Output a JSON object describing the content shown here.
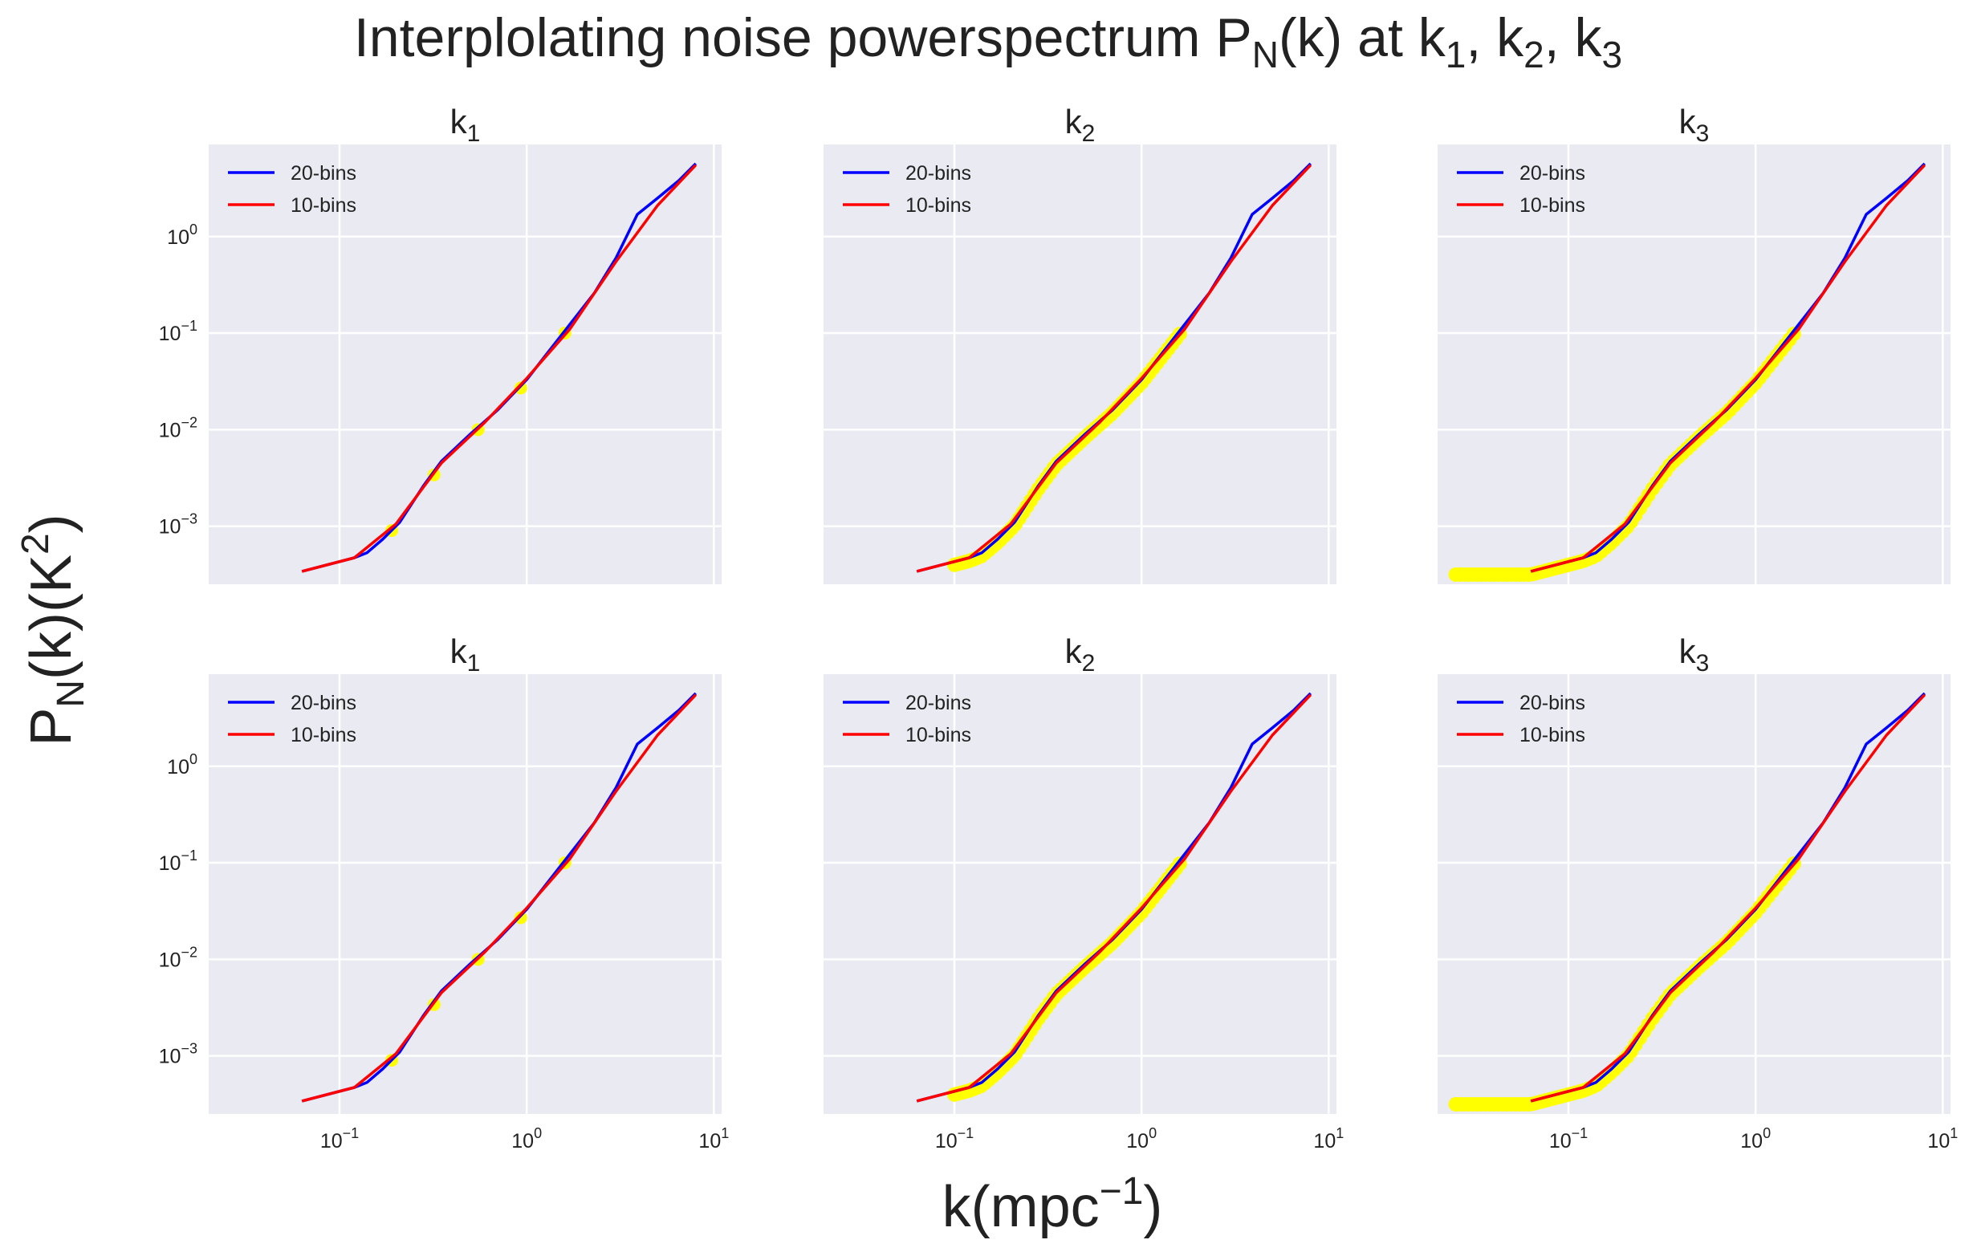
{
  "title": {
    "main": "Interplolating noise powerspectrum P",
    "sub": "N",
    "tail": "(k) at k",
    "k1sub": "1",
    "sep1": ", k",
    "k2sub": "2",
    "sep2": ", k",
    "k3sub": "3"
  },
  "xlabel": {
    "pre": "k(mpc",
    "sup": "−1",
    "post": ")"
  },
  "ylabel": {
    "p": "P",
    "sub": "N",
    "mid": "(k)(K",
    "sup": "2",
    "post": ")"
  },
  "colors": {
    "bg": "#eaeaf2",
    "grid": "#ffffff",
    "blue": "#0000ff",
    "red": "#ff0000",
    "yellow": "#ffff00"
  },
  "legend": [
    "20-bins",
    "10-bins"
  ],
  "xticks": [
    {
      "base": "10",
      "exp": "−1",
      "v": 0.1
    },
    {
      "base": "10",
      "exp": "0",
      "v": 1
    },
    {
      "base": "10",
      "exp": "1",
      "v": 10
    }
  ],
  "yticks": [
    {
      "base": "10",
      "exp": "0",
      "v": 1
    },
    {
      "base": "10",
      "exp": "−1",
      "v": 0.1
    },
    {
      "base": "10",
      "exp": "−2",
      "v": 0.01
    },
    {
      "base": "10",
      "exp": "−3",
      "v": 0.001
    }
  ],
  "chart_data": [
    {
      "type": "line",
      "title": "k",
      "title_sub": "1",
      "xscale": "log",
      "yscale": "log",
      "xlim": [
        0.02,
        11
      ],
      "ylim": [
        0.00025,
        9
      ],
      "series": [
        {
          "name": "20-bins",
          "color": "#0000ff",
          "x": [
            0.063,
            0.12,
            0.14,
            0.17,
            0.21,
            0.28,
            0.35,
            0.5,
            0.7,
            1.0,
            1.5,
            2.3,
            3.0,
            3.9,
            5.0,
            6.5,
            8.0
          ],
          "y": [
            0.00034,
            0.00047,
            0.00053,
            0.00073,
            0.0011,
            0.0026,
            0.0047,
            0.009,
            0.016,
            0.033,
            0.09,
            0.26,
            0.6,
            1.7,
            2.5,
            3.8,
            5.7
          ]
        },
        {
          "name": "10-bins",
          "color": "#ff0000",
          "x": [
            0.063,
            0.12,
            0.2,
            0.35,
            0.6,
            1.0,
            1.7,
            3.0,
            5.0,
            8.0
          ],
          "y": [
            0.00034,
            0.00047,
            0.00105,
            0.0045,
            0.012,
            0.034,
            0.11,
            0.55,
            2.1,
            5.5
          ]
        }
      ],
      "markers": {
        "color": "#ffff00",
        "x": [
          0.19,
          0.32,
          0.55,
          0.93,
          1.6
        ],
        "y": [
          0.0009,
          0.0034,
          0.01,
          0.027,
          0.1
        ]
      }
    },
    {
      "type": "line",
      "title": "k",
      "title_sub": "2",
      "xscale": "log",
      "yscale": "log",
      "xlim": [
        0.02,
        11
      ],
      "ylim": [
        0.00025,
        9
      ],
      "series": [
        {
          "name": "20-bins",
          "color": "#0000ff",
          "x": [
            0.063,
            0.12,
            0.14,
            0.17,
            0.21,
            0.28,
            0.35,
            0.5,
            0.7,
            1.0,
            1.5,
            2.3,
            3.0,
            3.9,
            5.0,
            6.5,
            8.0
          ],
          "y": [
            0.00034,
            0.00047,
            0.00053,
            0.00073,
            0.0011,
            0.0026,
            0.0047,
            0.009,
            0.016,
            0.033,
            0.09,
            0.26,
            0.6,
            1.7,
            2.5,
            3.8,
            5.7
          ]
        },
        {
          "name": "10-bins",
          "color": "#ff0000",
          "x": [
            0.063,
            0.12,
            0.2,
            0.35,
            0.6,
            1.0,
            1.7,
            3.0,
            5.0,
            8.0
          ],
          "y": [
            0.00034,
            0.00047,
            0.00105,
            0.0045,
            0.012,
            0.034,
            0.11,
            0.55,
            2.1,
            5.5
          ]
        }
      ],
      "markers": {
        "color": "#ffff00",
        "x_range": [
          0.1,
          1.6
        ],
        "count": 60
      }
    },
    {
      "type": "line",
      "title": "k",
      "title_sub": "3",
      "xscale": "log",
      "yscale": "log",
      "xlim": [
        0.02,
        11
      ],
      "ylim": [
        0.00025,
        9
      ],
      "series": [
        {
          "name": "20-bins",
          "color": "#0000ff",
          "x": [
            0.063,
            0.12,
            0.14,
            0.17,
            0.21,
            0.28,
            0.35,
            0.5,
            0.7,
            1.0,
            1.5,
            2.3,
            3.0,
            3.9,
            5.0,
            6.5,
            8.0
          ],
          "y": [
            0.00034,
            0.00047,
            0.00053,
            0.00073,
            0.0011,
            0.0026,
            0.0047,
            0.009,
            0.016,
            0.033,
            0.09,
            0.26,
            0.6,
            1.7,
            2.5,
            3.8,
            5.7
          ]
        },
        {
          "name": "10-bins",
          "color": "#ff0000",
          "x": [
            0.063,
            0.12,
            0.2,
            0.35,
            0.6,
            1.0,
            1.7,
            3.0,
            5.0,
            8.0
          ],
          "y": [
            0.00034,
            0.00047,
            0.00105,
            0.0045,
            0.012,
            0.034,
            0.11,
            0.55,
            2.1,
            5.5
          ]
        }
      ],
      "markers": {
        "color": "#ffff00",
        "x_range": [
          0.025,
          1.6
        ],
        "count": 80
      }
    },
    {
      "type": "line",
      "title": "k",
      "title_sub": "1",
      "xscale": "log",
      "yscale": "log",
      "xlim": [
        0.02,
        11
      ],
      "ylim": [
        0.00025,
        9
      ],
      "series": [
        {
          "name": "20-bins",
          "color": "#0000ff",
          "x": [
            0.063,
            0.12,
            0.14,
            0.17,
            0.21,
            0.28,
            0.35,
            0.5,
            0.7,
            1.0,
            1.5,
            2.3,
            3.0,
            3.9,
            5.0,
            6.5,
            8.0
          ],
          "y": [
            0.00034,
            0.00047,
            0.00053,
            0.00073,
            0.0011,
            0.0026,
            0.0047,
            0.009,
            0.016,
            0.033,
            0.09,
            0.26,
            0.6,
            1.7,
            2.5,
            3.8,
            5.7
          ]
        },
        {
          "name": "10-bins",
          "color": "#ff0000",
          "x": [
            0.063,
            0.12,
            0.2,
            0.35,
            0.6,
            1.0,
            1.7,
            3.0,
            5.0,
            8.0
          ],
          "y": [
            0.00034,
            0.00047,
            0.00105,
            0.0045,
            0.012,
            0.034,
            0.11,
            0.55,
            2.1,
            5.5
          ]
        }
      ],
      "markers": {
        "color": "#ffff00",
        "x": [
          0.19,
          0.32,
          0.55,
          0.93,
          1.6
        ],
        "y": [
          0.0009,
          0.0034,
          0.01,
          0.027,
          0.1
        ]
      }
    },
    {
      "type": "line",
      "title": "k",
      "title_sub": "2",
      "xscale": "log",
      "yscale": "log",
      "xlim": [
        0.02,
        11
      ],
      "ylim": [
        0.00025,
        9
      ],
      "series": [
        {
          "name": "20-bins",
          "color": "#0000ff",
          "x": [
            0.063,
            0.12,
            0.14,
            0.17,
            0.21,
            0.28,
            0.35,
            0.5,
            0.7,
            1.0,
            1.5,
            2.3,
            3.0,
            3.9,
            5.0,
            6.5,
            8.0
          ],
          "y": [
            0.00034,
            0.00047,
            0.00053,
            0.00073,
            0.0011,
            0.0026,
            0.0047,
            0.009,
            0.016,
            0.033,
            0.09,
            0.26,
            0.6,
            1.7,
            2.5,
            3.8,
            5.7
          ]
        },
        {
          "name": "10-bins",
          "color": "#ff0000",
          "x": [
            0.063,
            0.12,
            0.2,
            0.35,
            0.6,
            1.0,
            1.7,
            3.0,
            5.0,
            8.0
          ],
          "y": [
            0.00034,
            0.00047,
            0.00105,
            0.0045,
            0.012,
            0.034,
            0.11,
            0.55,
            2.1,
            5.5
          ]
        }
      ],
      "markers": {
        "color": "#ffff00",
        "x_range": [
          0.1,
          1.6
        ],
        "count": 60
      }
    },
    {
      "type": "line",
      "title": "k",
      "title_sub": "3",
      "xscale": "log",
      "yscale": "log",
      "xlim": [
        0.02,
        11
      ],
      "ylim": [
        0.00025,
        9
      ],
      "series": [
        {
          "name": "20-bins",
          "color": "#0000ff",
          "x": [
            0.063,
            0.12,
            0.14,
            0.17,
            0.21,
            0.28,
            0.35,
            0.5,
            0.7,
            1.0,
            1.5,
            2.3,
            3.0,
            3.9,
            5.0,
            6.5,
            8.0
          ],
          "y": [
            0.00034,
            0.00047,
            0.00053,
            0.00073,
            0.0011,
            0.0026,
            0.0047,
            0.009,
            0.016,
            0.033,
            0.09,
            0.26,
            0.6,
            1.7,
            2.5,
            3.8,
            5.7
          ]
        },
        {
          "name": "10-bins",
          "color": "#ff0000",
          "x": [
            0.063,
            0.12,
            0.2,
            0.35,
            0.6,
            1.0,
            1.7,
            3.0,
            5.0,
            8.0
          ],
          "y": [
            0.00034,
            0.00047,
            0.00105,
            0.0045,
            0.012,
            0.034,
            0.11,
            0.55,
            2.1,
            5.5
          ]
        }
      ],
      "markers": {
        "color": "#ffff00",
        "x_range": [
          0.025,
          1.6
        ],
        "count": 80
      }
    }
  ]
}
